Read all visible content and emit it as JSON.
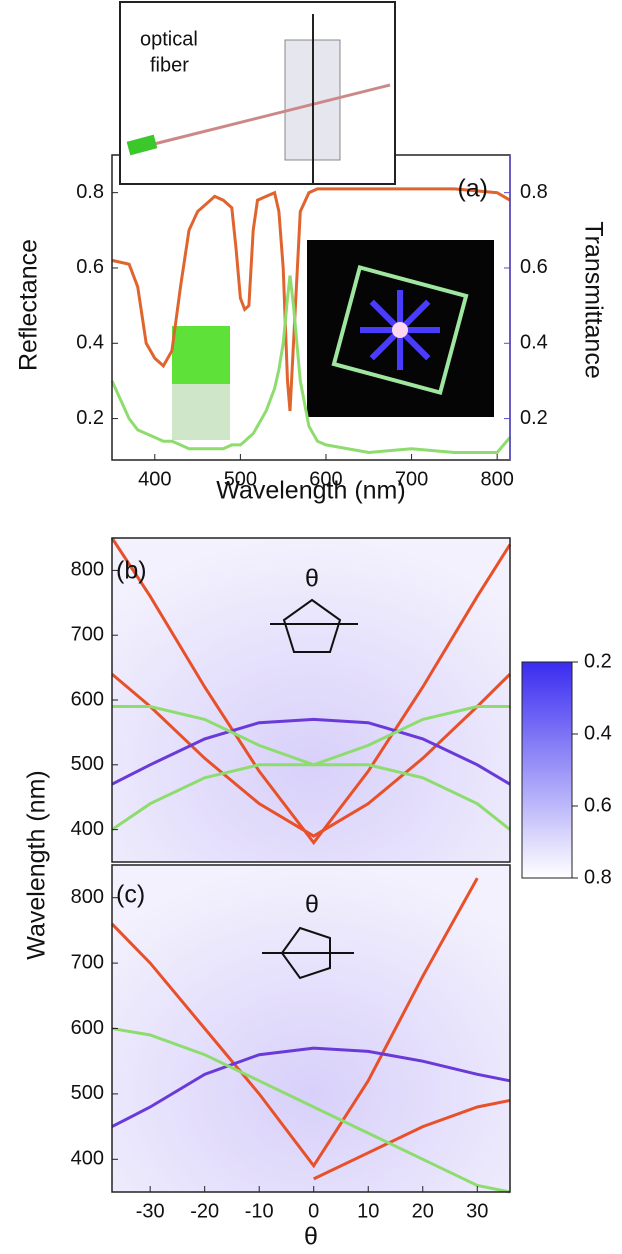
{
  "chart_data": [
    {
      "type": "line",
      "annotations": [
        "optical",
        "fiber",
        "(a)"
      ],
      "xlabel": "Wavelength (nm)",
      "ylabel": "Reflectance",
      "y2label": "Transmittance",
      "x": [
        350,
        370,
        380,
        390,
        400,
        410,
        420,
        430,
        440,
        450,
        460,
        470,
        480,
        490,
        495,
        500,
        505,
        510,
        515,
        520,
        530,
        540,
        545,
        550,
        555,
        558,
        562,
        570,
        580,
        590,
        600,
        650,
        700,
        750,
        800,
        815
      ],
      "series": [
        {
          "color": "#e0642e",
          "values": [
            0.62,
            0.61,
            0.55,
            0.4,
            0.36,
            0.34,
            0.38,
            0.55,
            0.7,
            0.75,
            0.77,
            0.79,
            0.78,
            0.76,
            0.65,
            0.52,
            0.49,
            0.5,
            0.7,
            0.78,
            0.79,
            0.8,
            0.75,
            0.6,
            0.3,
            0.22,
            0.4,
            0.75,
            0.8,
            0.81,
            0.81,
            0.81,
            0.81,
            0.81,
            0.8,
            0.78
          ]
        },
        {
          "color": "#8edc6e",
          "axis": "y2",
          "values": [
            0.3,
            0.2,
            0.17,
            0.16,
            0.15,
            0.14,
            0.14,
            0.13,
            0.12,
            0.12,
            0.12,
            0.12,
            0.12,
            0.13,
            0.13,
            0.13,
            0.14,
            0.15,
            0.16,
            0.18,
            0.22,
            0.28,
            0.33,
            0.4,
            0.52,
            0.58,
            0.5,
            0.3,
            0.18,
            0.14,
            0.13,
            0.11,
            0.12,
            0.11,
            0.11,
            0.15
          ]
        }
      ],
      "xlim": [
        350,
        815
      ],
      "xticks": [
        400,
        500,
        600,
        700,
        800
      ],
      "ylim": [
        0.09,
        0.9
      ],
      "yticks": [
        0.2,
        0.4,
        0.6,
        0.8
      ],
      "y2lim": [
        0.09,
        0.9
      ],
      "y2ticks": [
        0.2,
        0.4,
        0.6,
        0.8
      ]
    },
    {
      "type": "line",
      "annotations": [
        "(b)",
        "θ"
      ],
      "ylabel": "Wavelength (nm)",
      "x": [
        -37,
        -30,
        -20,
        -10,
        0,
        10,
        20,
        30,
        36
      ],
      "series": [
        {
          "color": "#e8502a",
          "values": [
            850,
            760,
            620,
            490,
            380,
            490,
            620,
            760,
            840
          ]
        },
        {
          "color": "#e8502a",
          "values": [
            640,
            590,
            510,
            440,
            390,
            440,
            510,
            590,
            640
          ]
        },
        {
          "color": "#6a3ad8",
          "values": [
            470,
            500,
            540,
            565,
            570,
            565,
            540,
            500,
            470
          ]
        },
        {
          "color": "#8edc6e",
          "values": [
            590,
            590,
            570,
            530,
            500,
            530,
            570,
            590,
            590
          ]
        },
        {
          "color": "#8edc6e",
          "values": [
            400,
            440,
            480,
            500,
            500,
            500,
            480,
            440,
            400
          ]
        }
      ],
      "xlim": [
        -37,
        36
      ],
      "ylim": [
        350,
        850
      ],
      "yticks": [
        400,
        500,
        600,
        700,
        800
      ],
      "zlim": [
        0.2,
        0.8
      ],
      "zticks": [
        0.2,
        0.4,
        0.6,
        0.8
      ],
      "zcolors": [
        "#3a2cf0",
        "#ffffff"
      ]
    },
    {
      "type": "line",
      "annotations": [
        "(c)",
        "θ"
      ],
      "xlabel": "θ",
      "x": [
        -37,
        -30,
        -20,
        -10,
        0,
        10,
        20,
        30,
        36
      ],
      "series": [
        {
          "color": "#e8502a",
          "values": [
            760,
            700,
            600,
            500,
            390,
            520,
            680,
            830,
            null
          ]
        },
        {
          "color": "#e8502a",
          "values": [
            null,
            null,
            null,
            null,
            370,
            410,
            450,
            480,
            490
          ]
        },
        {
          "color": "#6a3ad8",
          "values": [
            450,
            480,
            530,
            560,
            570,
            565,
            550,
            530,
            520
          ]
        },
        {
          "color": "#8edc6e",
          "values": [
            600,
            590,
            560,
            520,
            480,
            440,
            400,
            360,
            350
          ]
        }
      ],
      "xlim": [
        -37,
        36
      ],
      "xticks": [
        -30,
        -20,
        -10,
        0,
        10,
        20,
        30
      ],
      "ylim": [
        350,
        850
      ],
      "yticks": [
        400,
        500,
        600,
        700,
        800
      ]
    }
  ]
}
